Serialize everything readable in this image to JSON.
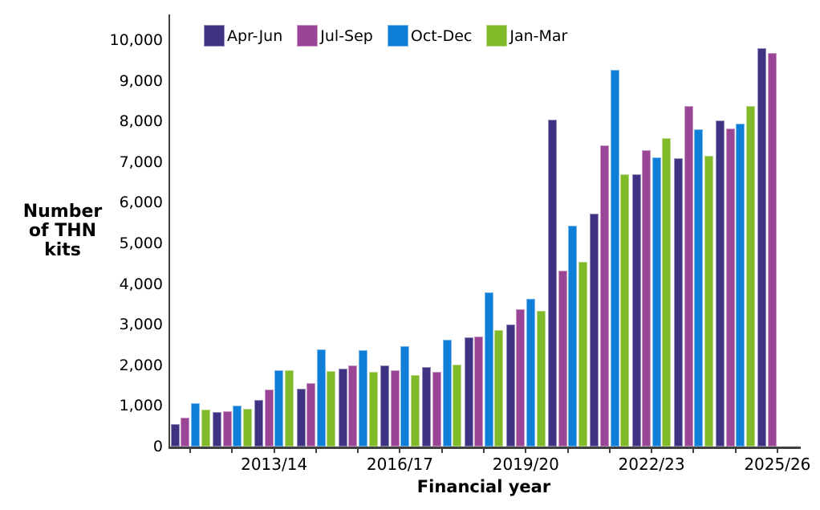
{
  "chart_data": {
    "type": "bar",
    "title": "",
    "xlabel": "Financial year",
    "ylabel": "Number of THN kits",
    "ylabel_lines": [
      "Number",
      "of THN",
      "kits"
    ],
    "categories": [
      "2011/12",
      "2012/13",
      "2013/14",
      "2014/15",
      "2015/16",
      "2016/17",
      "2017/18",
      "2018/19",
      "2019/20",
      "2020/21",
      "2021/22",
      "2022/23",
      "2023/24",
      "2024/25",
      "2025/26"
    ],
    "series": [
      {
        "name": "Apr-Jun",
        "color": "#3e3383",
        "values": [
          560,
          840,
          1140,
          1430,
          1920,
          1990,
          1960,
          2680,
          3000,
          8050,
          5740,
          6700,
          7100,
          8020,
          9800
        ]
      },
      {
        "name": "Jul-Sep",
        "color": "#9b4596",
        "values": [
          710,
          870,
          1400,
          1560,
          2000,
          1880,
          1830,
          2710,
          3380,
          4320,
          7420,
          7290,
          8380,
          7820,
          9680
        ]
      },
      {
        "name": "Oct-Dec",
        "color": "#0e7ed8",
        "values": [
          1070,
          1010,
          1870,
          2400,
          2380,
          2470,
          2620,
          3800,
          3630,
          5440,
          9270,
          7110,
          7810,
          7940,
          null
        ]
      },
      {
        "name": "Jan-Mar",
        "color": "#80ba28",
        "values": [
          900,
          920,
          1880,
          1860,
          1830,
          1750,
          2010,
          2870,
          3340,
          4550,
          6700,
          7590,
          7150,
          8380,
          null
        ]
      }
    ],
    "y_ticks": [
      {
        "value": 0,
        "label": "0"
      },
      {
        "value": 1000,
        "label": "1,000"
      },
      {
        "value": 2000,
        "label": "2,000"
      },
      {
        "value": 3000,
        "label": "3,000"
      },
      {
        "value": 4000,
        "label": "4,000"
      },
      {
        "value": 5000,
        "label": "5,000"
      },
      {
        "value": 6000,
        "label": "6,000"
      },
      {
        "value": 7000,
        "label": "7,000"
      },
      {
        "value": 8000,
        "label": "8,000"
      },
      {
        "value": 9000,
        "label": "9,000"
      },
      {
        "value": 10000,
        "label": "10,000"
      }
    ],
    "x_tick_labels": [
      "2013/14",
      "2016/17",
      "2019/20",
      "2022/23",
      "2025/26"
    ],
    "x_tick_label_indices": [
      2,
      5,
      8,
      11,
      14
    ],
    "ylim": [
      0,
      10600
    ],
    "grid": false,
    "legend_position": "top"
  }
}
